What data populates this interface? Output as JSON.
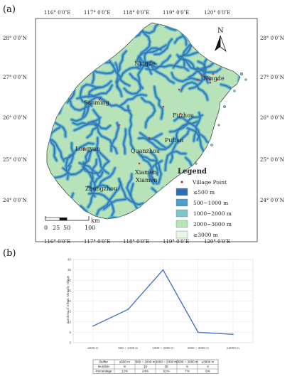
{
  "panel_a": {
    "label": "(a)",
    "lon_ticks": [
      "116° 0′0″E",
      "117° 0′0″E",
      "118° 0′0″E",
      "119° 0′0″E",
      "120° 0′0″E"
    ],
    "lat_ticks": [
      "28° 0′0″N",
      "27° 0′0″N",
      "26° 0′0″N",
      "25° 0′0″N",
      "24° 0′0″N"
    ],
    "north": "N",
    "cities": [
      "Ningde",
      "Ningde",
      "Sanming",
      "Fuzhou",
      "Putian",
      "Longyan",
      "Quanzhou",
      "Xiamen",
      "Xiamen",
      "Zhangzhou"
    ],
    "legend": {
      "title": "Legend",
      "village": "Village Point",
      "classes": [
        {
          "label": "≤500 m",
          "color": "#2f6fb0"
        },
        {
          "label": "500~1000 m",
          "color": "#4f9fcc"
        },
        {
          "label": "1000~2000 m",
          "color": "#7cc7c4"
        },
        {
          "label": "2000~3000 m",
          "color": "#b8e3b9"
        },
        {
          "label": "≥3000 m",
          "color": "#eaf6e4"
        }
      ]
    },
    "scale": {
      "labels": [
        "0",
        "25",
        "50",
        "100"
      ],
      "unit": "km"
    }
  },
  "panel_b": {
    "label": "(b)",
    "lon_ticks": [
      "116° 0′0″E",
      "117° 0′0″E",
      "118° 0′0″E",
      "119° 0′0″E",
      "120° 0′0″E"
    ]
  },
  "chart_data": {
    "type": "line",
    "categories": [
      "≤500 m",
      "500 ~ 1000 m",
      "1000 ~ 2000 m",
      "2000 ~ 3000 m",
      "≥3000 m"
    ],
    "series": [
      {
        "values": [
          8,
          16,
          35,
          5,
          4
        ]
      }
    ],
    "ylabel": "numbers of Ethnic Minority village",
    "ylim": [
      0,
      40
    ],
    "yticks": [
      "0",
      "5",
      "10",
      "15",
      "20",
      "25",
      "30",
      "35",
      "40"
    ],
    "line_color": "#4a72c4",
    "grid": true,
    "table": {
      "header": [
        "Buffer",
        "≤500 m",
        "500 ~ 1000 m",
        "1000 ~ 2000 m",
        "2000 ~ 3000 m",
        "≥3000 m"
      ],
      "rows": [
        [
          "Number",
          "8",
          "16",
          "35",
          "5",
          "4"
        ],
        [
          "Percentage",
          "12%",
          "24%",
          "51%",
          "7%",
          "6%"
        ]
      ]
    }
  }
}
